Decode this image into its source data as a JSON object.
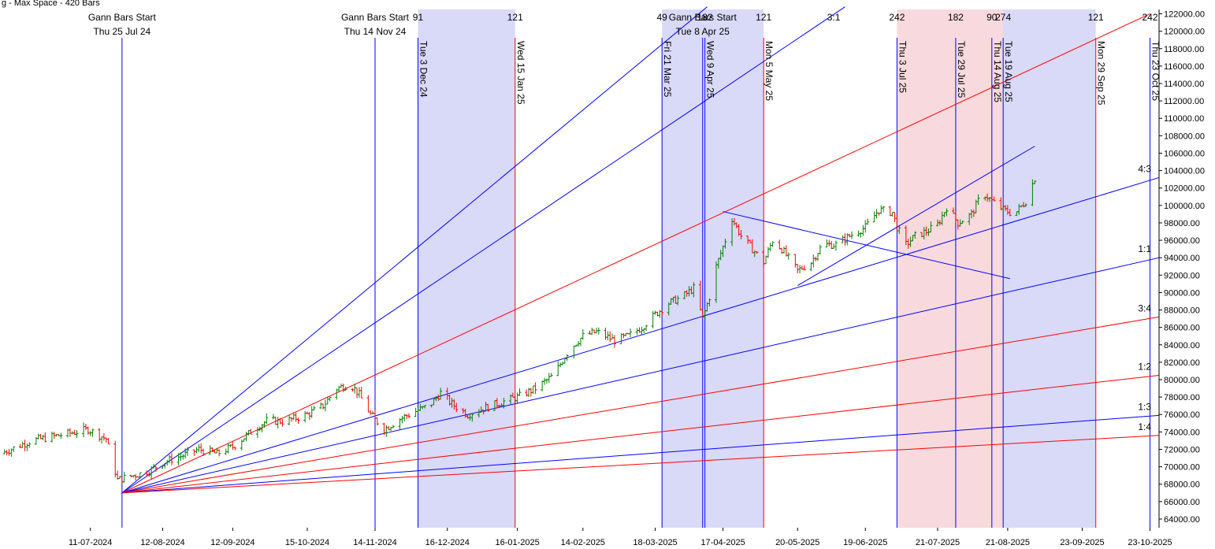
{
  "chart_data": {
    "type": "line",
    "header_text": "g - Max Space - 420 Bars",
    "y_axis": {
      "min": 63000,
      "max": 122500,
      "ticks": [
        64000,
        66000,
        68000,
        70000,
        72000,
        74000,
        76000,
        78000,
        80000,
        82000,
        84000,
        86000,
        88000,
        90000,
        92000,
        94000,
        96000,
        98000,
        100000,
        102000,
        104000,
        106000,
        108000,
        110000,
        112000,
        114000,
        116000,
        118000,
        120000,
        122000
      ],
      "tick_labels": [
        "64000.00",
        "66000.00",
        "68000.00",
        "70000.00",
        "72000.00",
        "74000.00",
        "76000.00",
        "78000.00",
        "80000.00",
        "82000.00",
        "84000.00",
        "86000.00",
        "88000.00",
        "90000.00",
        "92000.00",
        "94000.00",
        "96000.00",
        "98000.00",
        "100000.00",
        "102000.00",
        "104000.00",
        "106000.00",
        "108000.00",
        "110000.00",
        "112000.00",
        "114000.00",
        "116000.00",
        "118000.00",
        "120000.00",
        "122000.00"
      ]
    },
    "x_axis": {
      "start": "2024-06-01",
      "end": "2025-10-27",
      "tick_labels": [
        "11-07-2024",
        "12-08-2024",
        "12-09-2024",
        "15-10-2024",
        "14-11-2024",
        "16-12-2024",
        "16-01-2025",
        "14-02-2025",
        "18-03-2025",
        "17-04-2025",
        "20-05-2025",
        "19-06-2025",
        "21-07-2025",
        "21-08-2025",
        "23-09-2025",
        "23-10-2025"
      ],
      "tick_dates": [
        "2024-07-11",
        "2024-08-12",
        "2024-09-12",
        "2024-10-15",
        "2024-11-14",
        "2024-12-16",
        "2025-01-16",
        "2025-02-14",
        "2025-03-18",
        "2025-04-17",
        "2025-05-20",
        "2025-06-19",
        "2025-07-21",
        "2025-08-21",
        "2025-09-23",
        "2025-10-23"
      ]
    },
    "gann_starts": [
      {
        "title": "Gann Bars Start",
        "date_label": "Thu 25 Jul 24",
        "date": "2024-07-25"
      },
      {
        "title": "Gann Bars Start",
        "date_label": "Thu 14 Nov 24",
        "date": "2024-11-14"
      },
      {
        "title": "Gann Bars Start",
        "date_label": "Tue 8 Apr 25",
        "date": "2025-04-08"
      }
    ],
    "vertical_markers": [
      {
        "label": "Tue 3 Dec 24",
        "date": "2024-12-03",
        "color": "#0000ff"
      },
      {
        "label": "Wed 15 Jan 25",
        "date": "2025-01-15",
        "color": "#ff0000"
      },
      {
        "label": "Fri 21 Mar 25",
        "date": "2025-03-21",
        "color": "#0000ff"
      },
      {
        "label": "Wed 9 Apr 25",
        "date": "2025-04-09",
        "color": "#0000ff"
      },
      {
        "label": "Mon 5 May 25",
        "date": "2025-05-05",
        "color": "#ff0000"
      },
      {
        "label": "Thu 3 Jul 25",
        "date": "2025-07-03",
        "color": "#0000ff"
      },
      {
        "label": "Tue 29 Jul 25",
        "date": "2025-07-29",
        "color": "#0000ff"
      },
      {
        "label": "Thu 14 Aug 25",
        "date": "2025-08-14",
        "color": "#0000ff"
      },
      {
        "label": "Tue 19 Aug 25",
        "date": "2025-08-19",
        "color": "#0000ff"
      },
      {
        "label": "Mon 29 Sep 25",
        "date": "2025-09-29",
        "color": "#ff0000"
      },
      {
        "label": "Thu 23 Oct 25",
        "date": "2025-10-23",
        "color": "#0000ff"
      }
    ],
    "bar_count_labels": [
      {
        "text": "91",
        "date": "2024-12-03"
      },
      {
        "text": "121",
        "date": "2025-01-15"
      },
      {
        "text": "49",
        "date": "2025-03-21"
      },
      {
        "text": "182",
        "date": "2025-04-09"
      },
      {
        "text": "121",
        "date": "2025-05-05"
      },
      {
        "text": "3:1",
        "date": "2025-06-05"
      },
      {
        "text": "242",
        "date": "2025-07-03"
      },
      {
        "text": "182",
        "date": "2025-07-29"
      },
      {
        "text": "90",
        "date": "2025-08-14"
      },
      {
        "text": "274",
        "date": "2025-08-19"
      },
      {
        "text": "121",
        "date": "2025-09-29"
      },
      {
        "text": "242",
        "date": "2025-10-23"
      }
    ],
    "shaded_regions": [
      {
        "from": "2024-12-03",
        "to": "2025-01-15",
        "color": "blue"
      },
      {
        "from": "2025-03-21",
        "to": "2025-05-05",
        "color": "blue"
      },
      {
        "from": "2025-07-03",
        "to": "2025-08-19",
        "color": "red"
      },
      {
        "from": "2025-08-19",
        "to": "2025-09-29",
        "color": "blue"
      }
    ],
    "fan_origin": {
      "date": "2024-07-25",
      "value": 67000
    },
    "fan_lines": [
      {
        "name": "4:3",
        "value_at_edge": 103200,
        "color": "#0000ff"
      },
      {
        "name": "1:1",
        "value_at_edge": 94000,
        "color": "#0000ff"
      },
      {
        "name": "3:4",
        "value_at_edge": 87200,
        "color": "#ff0000"
      },
      {
        "name": "1:2",
        "value_at_edge": 80500,
        "color": "#ff0000"
      },
      {
        "name": "1:3",
        "value_at_edge": 75900,
        "color": "#0000ff"
      },
      {
        "name": "1:4",
        "value_at_edge": 73600,
        "color": "#ff0000"
      }
    ],
    "fan_lines_unlabeled": [
      {
        "color": "#ff0000",
        "end_date": "2025-10-23",
        "end_value": 122000
      },
      {
        "color": "#0000ff",
        "end_date": "2025-06-10",
        "end_value": 122800
      },
      {
        "color": "#0000ff",
        "end_date": "2025-04-10",
        "end_value": 122800
      }
    ],
    "trend_lines": [
      {
        "color": "#0000ff",
        "from": {
          "date": "2025-04-17",
          "value": 99300
        },
        "to": {
          "date": "2025-08-22",
          "value": 91600
        }
      },
      {
        "color": "#0000ff",
        "from": {
          "date": "2025-05-20",
          "value": 90800
        },
        "to": {
          "date": "2025-09-02",
          "value": 106800
        }
      }
    ],
    "price_series": [
      {
        "date": "2024-06-01",
        "close": 71500
      },
      {
        "date": "2024-06-15",
        "close": 73000
      },
      {
        "date": "2024-07-01",
        "close": 73800
      },
      {
        "date": "2024-07-10",
        "close": 74300
      },
      {
        "date": "2024-07-18",
        "close": 73200
      },
      {
        "date": "2024-07-23",
        "close": 68500
      },
      {
        "date": "2024-07-30",
        "close": 69000
      },
      {
        "date": "2024-08-06",
        "close": 69500
      },
      {
        "date": "2024-08-12",
        "close": 70500
      },
      {
        "date": "2024-08-20",
        "close": 71200
      },
      {
        "date": "2024-08-28",
        "close": 72000
      },
      {
        "date": "2024-09-05",
        "close": 71500
      },
      {
        "date": "2024-09-12",
        "close": 72300
      },
      {
        "date": "2024-09-20",
        "close": 74000
      },
      {
        "date": "2024-09-27",
        "close": 75300
      },
      {
        "date": "2024-10-05",
        "close": 75200
      },
      {
        "date": "2024-10-15",
        "close": 76000
      },
      {
        "date": "2024-10-22",
        "close": 77000
      },
      {
        "date": "2024-10-28",
        "close": 79000
      },
      {
        "date": "2024-11-03",
        "close": 79500
      },
      {
        "date": "2024-11-07",
        "close": 78300
      },
      {
        "date": "2024-11-12",
        "close": 76000
      },
      {
        "date": "2024-11-18",
        "close": 74300
      },
      {
        "date": "2024-11-25",
        "close": 75500
      },
      {
        "date": "2024-12-03",
        "close": 76500
      },
      {
        "date": "2024-12-08",
        "close": 77000
      },
      {
        "date": "2024-12-13",
        "close": 78500
      },
      {
        "date": "2024-12-18",
        "close": 77200
      },
      {
        "date": "2024-12-25",
        "close": 76000
      },
      {
        "date": "2025-01-02",
        "close": 76800
      },
      {
        "date": "2025-01-10",
        "close": 77500
      },
      {
        "date": "2025-01-16",
        "close": 78000
      },
      {
        "date": "2025-01-24",
        "close": 79000
      },
      {
        "date": "2025-02-01",
        "close": 80500
      },
      {
        "date": "2025-02-08",
        "close": 83500
      },
      {
        "date": "2025-02-14",
        "close": 85000
      },
      {
        "date": "2025-02-20",
        "close": 85500
      },
      {
        "date": "2025-02-28",
        "close": 84500
      },
      {
        "date": "2025-03-06",
        "close": 85000
      },
      {
        "date": "2025-03-12",
        "close": 86000
      },
      {
        "date": "2025-03-18",
        "close": 87500
      },
      {
        "date": "2025-03-24",
        "close": 88800
      },
      {
        "date": "2025-03-30",
        "close": 89500
      },
      {
        "date": "2025-04-04",
        "close": 90500
      },
      {
        "date": "2025-04-08",
        "close": 87000
      },
      {
        "date": "2025-04-11",
        "close": 89500
      },
      {
        "date": "2025-04-14",
        "close": 93000
      },
      {
        "date": "2025-04-18",
        "close": 96000
      },
      {
        "date": "2025-04-21",
        "close": 98500
      },
      {
        "date": "2025-04-25",
        "close": 96500
      },
      {
        "date": "2025-04-30",
        "close": 95000
      },
      {
        "date": "2025-05-05",
        "close": 93500
      },
      {
        "date": "2025-05-09",
        "close": 96000
      },
      {
        "date": "2025-05-13",
        "close": 95000
      },
      {
        "date": "2025-05-20",
        "close": 92500
      },
      {
        "date": "2025-05-26",
        "close": 93500
      },
      {
        "date": "2025-05-31",
        "close": 95500
      },
      {
        "date": "2025-06-06",
        "close": 95500
      },
      {
        "date": "2025-06-12",
        "close": 96500
      },
      {
        "date": "2025-06-19",
        "close": 97500
      },
      {
        "date": "2025-06-25",
        "close": 99500
      },
      {
        "date": "2025-07-01",
        "close": 99200
      },
      {
        "date": "2025-07-03",
        "close": 97500
      },
      {
        "date": "2025-07-07",
        "close": 95500
      },
      {
        "date": "2025-07-11",
        "close": 96500
      },
      {
        "date": "2025-07-16",
        "close": 97000
      },
      {
        "date": "2025-07-21",
        "close": 97800
      },
      {
        "date": "2025-07-25",
        "close": 99800
      },
      {
        "date": "2025-07-30",
        "close": 98000
      },
      {
        "date": "2025-08-05",
        "close": 99000
      },
      {
        "date": "2025-08-10",
        "close": 101500
      },
      {
        "date": "2025-08-14",
        "close": 100500
      },
      {
        "date": "2025-08-19",
        "close": 99500
      },
      {
        "date": "2025-08-24",
        "close": 99000
      },
      {
        "date": "2025-08-29",
        "close": 100500
      },
      {
        "date": "2025-09-03",
        "close": 103800
      }
    ],
    "colors": {
      "up": "#008000",
      "down": "#ff0000",
      "blue": "#0000ff",
      "red": "#ff0000"
    },
    "grid": false
  }
}
